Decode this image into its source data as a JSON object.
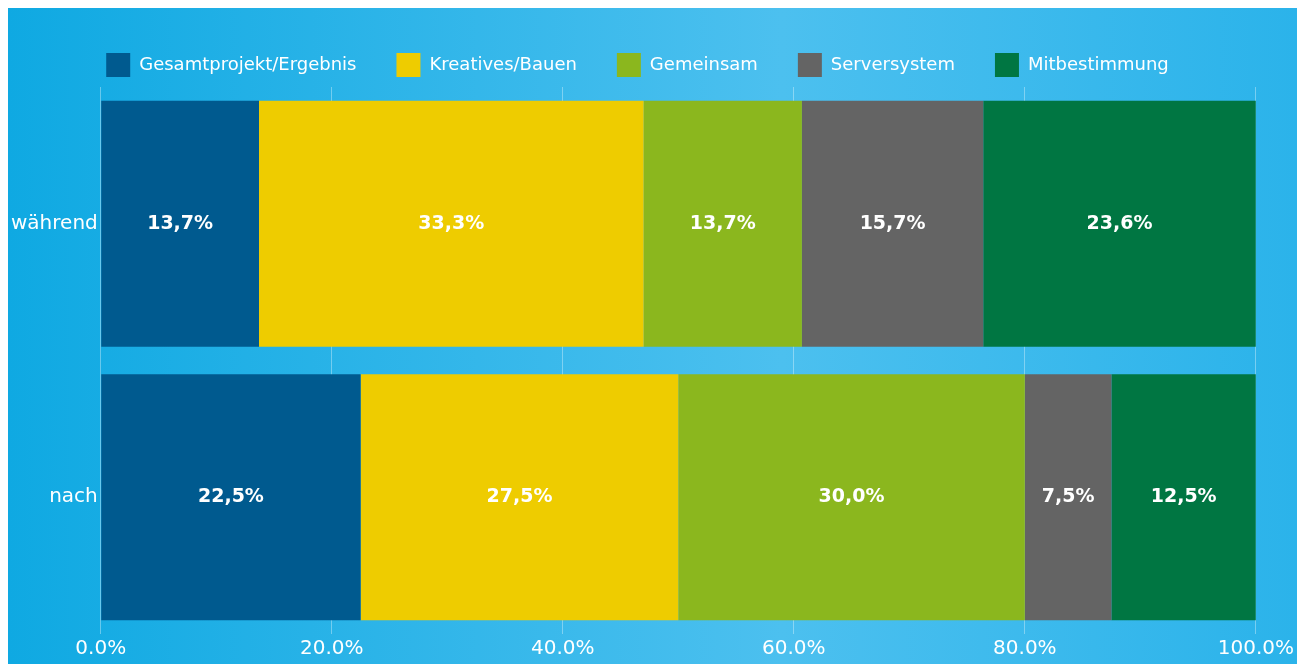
{
  "chart_data": {
    "type": "bar",
    "orientation": "horizontal",
    "stacked": true,
    "categories": [
      "während",
      "nach"
    ],
    "series": [
      {
        "name": "Gesamtprojekt/Ergebnis",
        "color": "#005a8f",
        "values": [
          13.7,
          22.5
        ],
        "value_labels": [
          "13,7%",
          "22,5%"
        ]
      },
      {
        "name": "Kreatives/Bauen",
        "color": "#eecc00",
        "values": [
          33.3,
          27.5
        ],
        "value_labels": [
          "33,3%",
          "27,5%"
        ]
      },
      {
        "name": "Gemeinsam",
        "color": "#8bb71e",
        "values": [
          13.7,
          30.0
        ],
        "value_labels": [
          "13,7%",
          "30,0%"
        ]
      },
      {
        "name": "Serversystem",
        "color": "#646464",
        "values": [
          15.7,
          7.5
        ],
        "value_labels": [
          "15,7%",
          "7,5%"
        ]
      },
      {
        "name": "Mitbestimmung",
        "color": "#007642",
        "values": [
          23.6,
          12.5
        ],
        "value_labels": [
          "23,6%",
          "12,5%"
        ]
      }
    ],
    "xlim": [
      0,
      100
    ],
    "xticks": [
      {
        "value": 0,
        "label": "0.0%"
      },
      {
        "value": 20,
        "label": "20.0%"
      },
      {
        "value": 40,
        "label": "40.0%"
      },
      {
        "value": 60,
        "label": "60.0%"
      },
      {
        "value": 80,
        "label": "80.0%"
      },
      {
        "value": 100,
        "label": "100.0%"
      }
    ],
    "grid": "x",
    "legend": "top"
  }
}
